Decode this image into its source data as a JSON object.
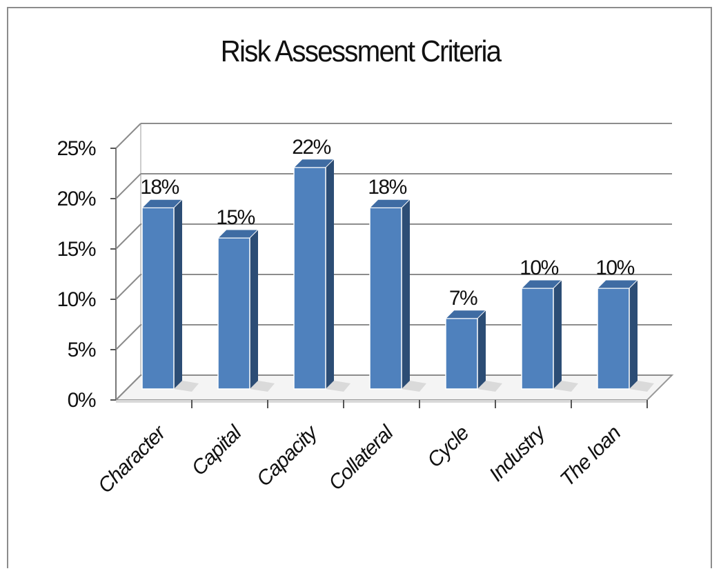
{
  "chart_data": {
    "type": "bar",
    "title": "Risk Assessment Criteria",
    "categories": [
      "Character",
      "Capital",
      "Capacity",
      "Collateral",
      "Cycle",
      "Industry",
      "The loan"
    ],
    "values": [
      18,
      15,
      22,
      18,
      7,
      10,
      10
    ],
    "data_labels": [
      "18%",
      "15%",
      "22%",
      "18%",
      "7%",
      "10%",
      "10%"
    ],
    "yticks": [
      "0%",
      "5%",
      "10%",
      "15%",
      "20%",
      "25%"
    ],
    "ylim": [
      0,
      25
    ],
    "xlabel": "",
    "ylabel": "",
    "grid": true,
    "style": "3d-column",
    "colors": {
      "front": "#4f81bd",
      "side": "#2c4d75",
      "top": "#3f6ca3",
      "grid": "#8c8c8c"
    }
  }
}
